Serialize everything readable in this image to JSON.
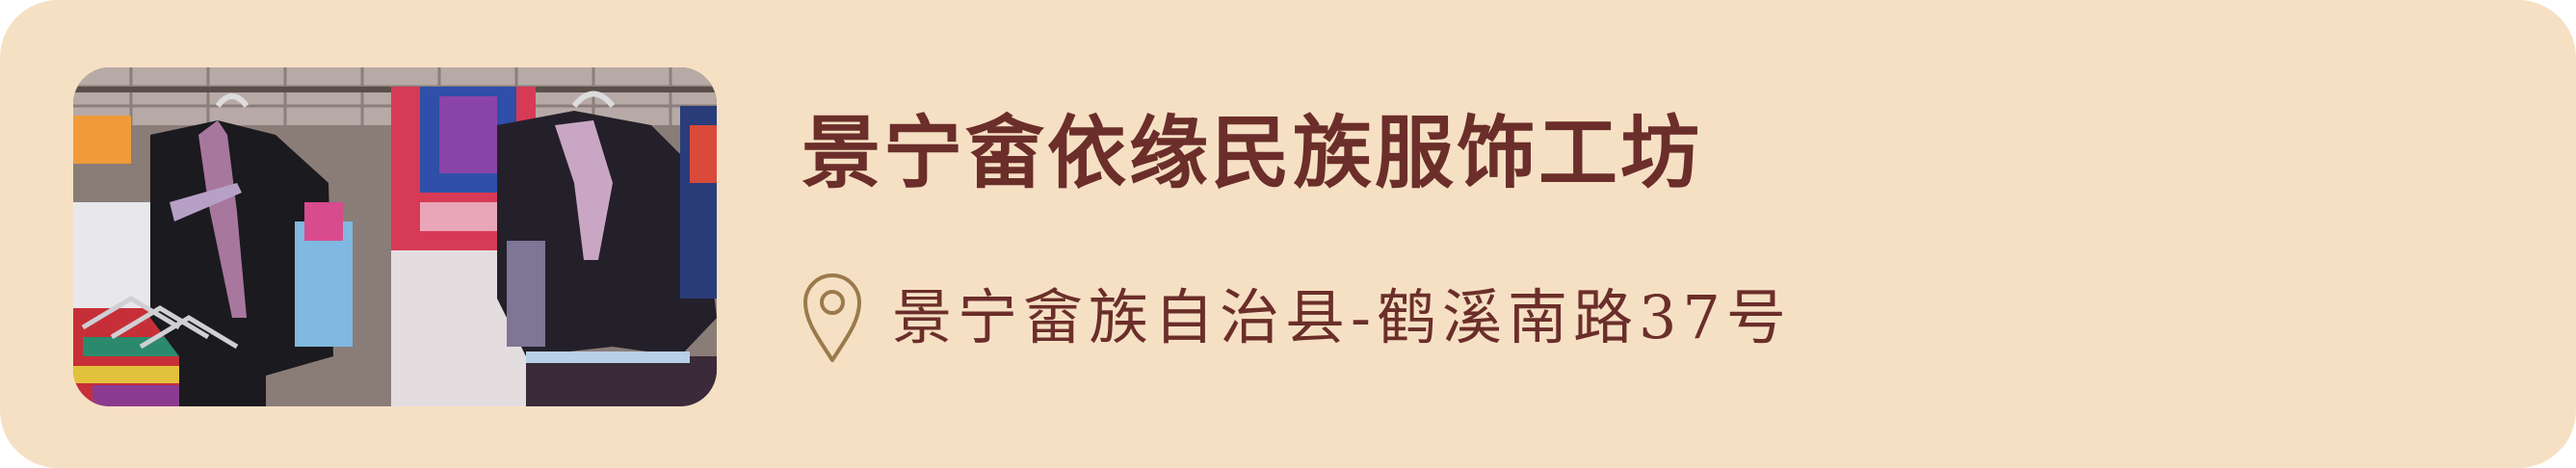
{
  "shop": {
    "name": "景宁畲依缘民族服饰工坊",
    "address": "景宁畲族自治县-鹤溪南路37号"
  },
  "icons": {
    "location": "map-pin-icon"
  },
  "colors": {
    "card_background": "#f6e0c4",
    "title_text": "#6b2e2a",
    "pin_stroke": "#9a7a4c"
  }
}
